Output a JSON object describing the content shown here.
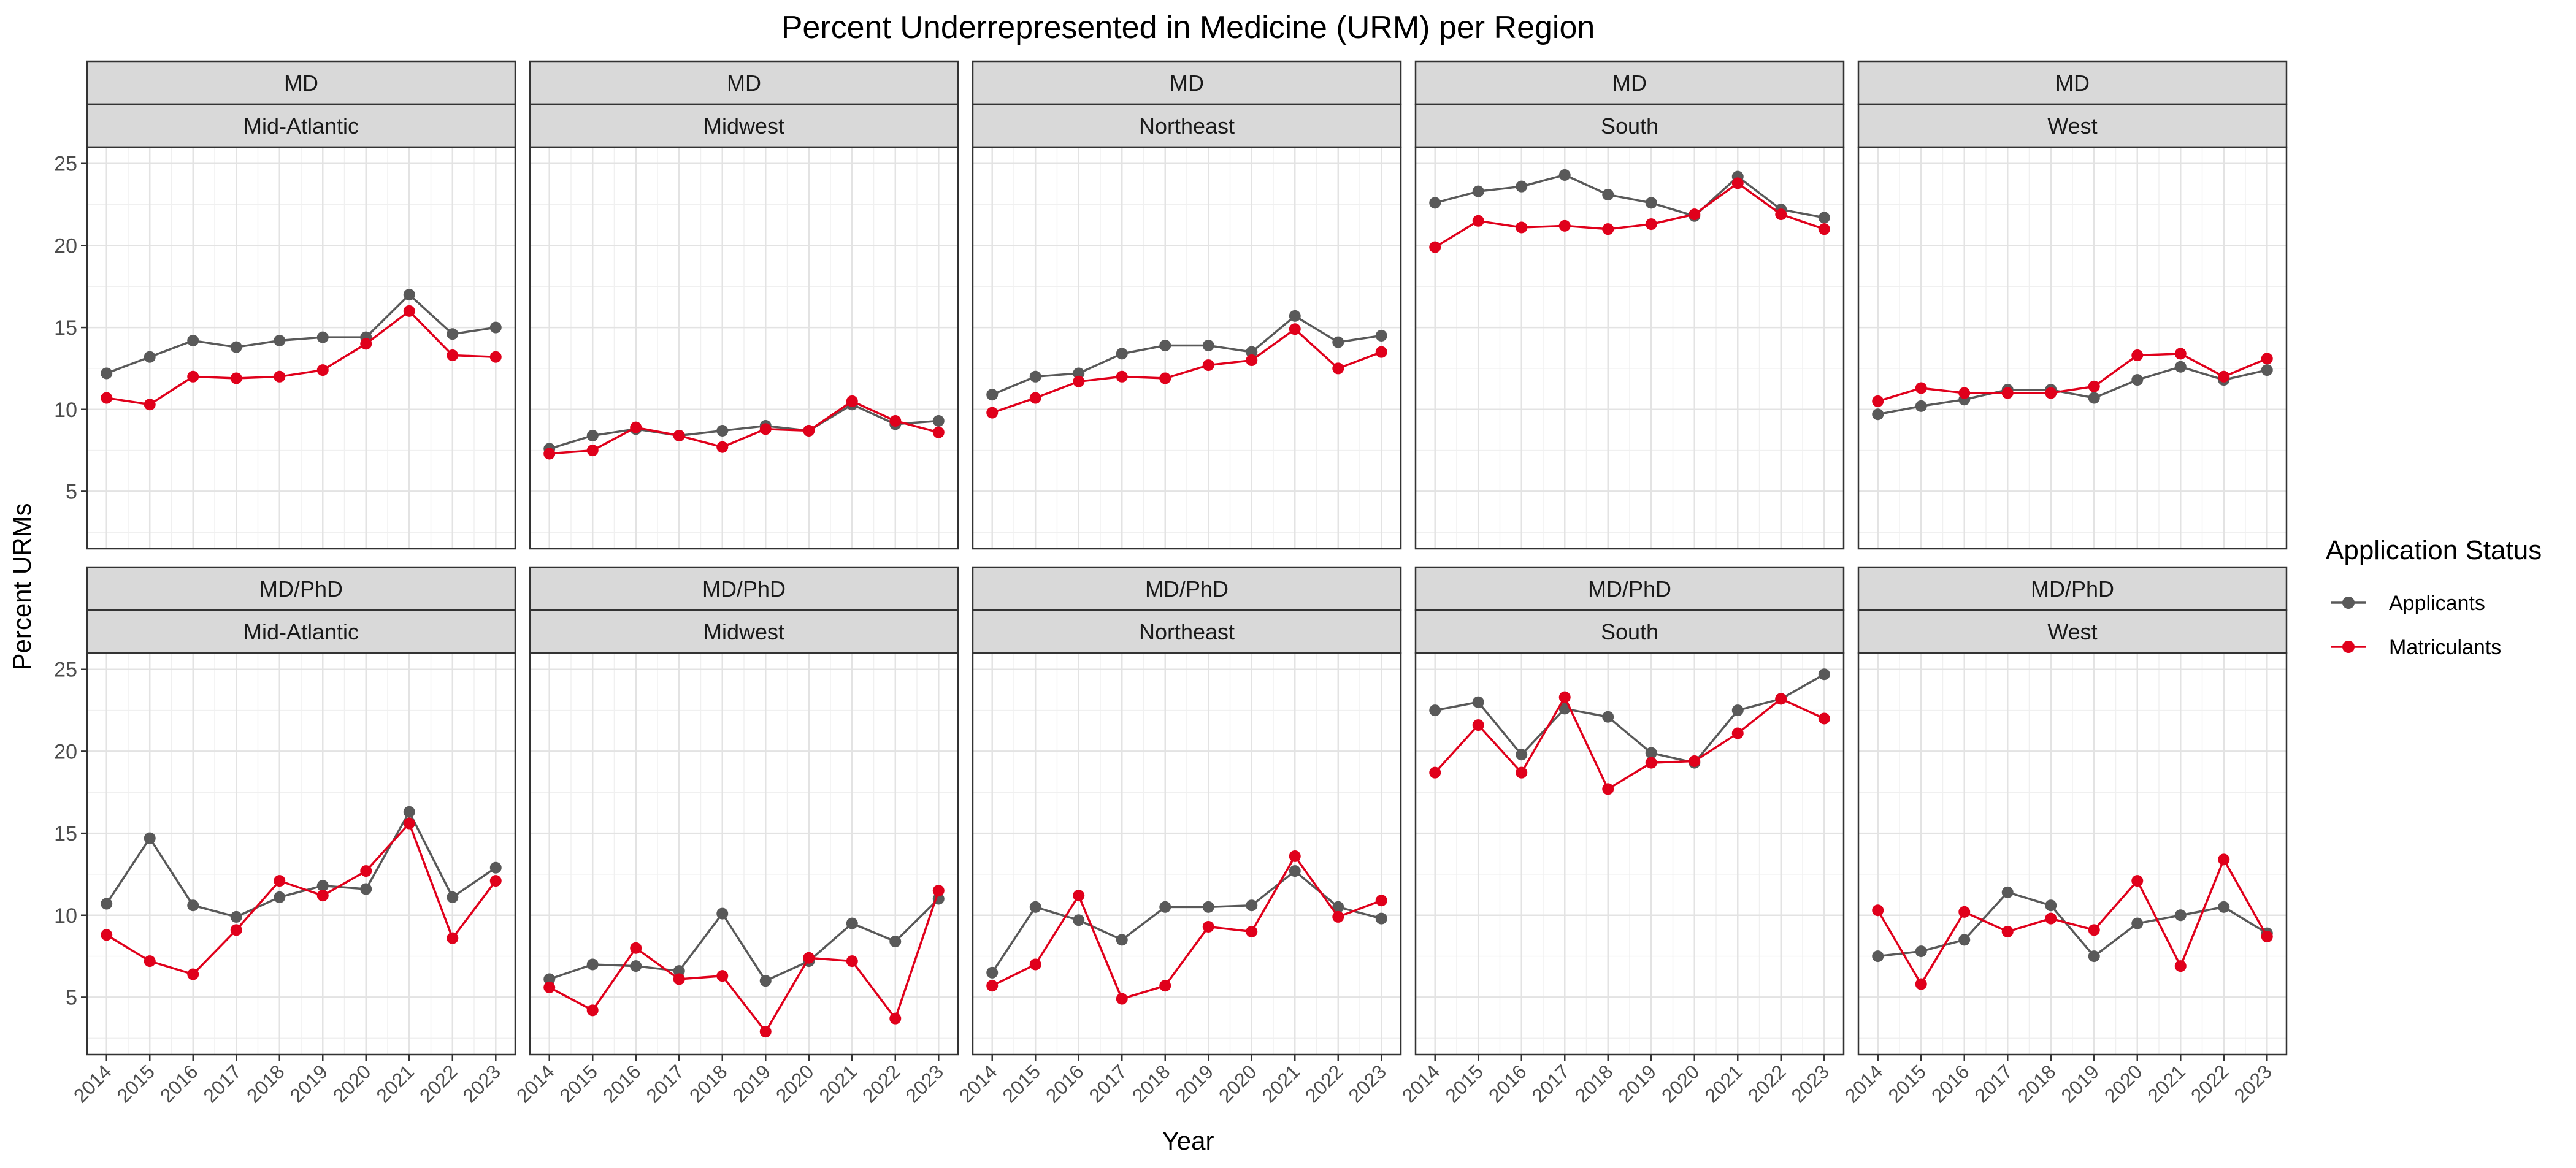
{
  "chart_data": {
    "type": "line",
    "title": "Percent Underrepresented in Medicine (URM) per Region",
    "xlabel": "Year",
    "ylabel": "Percent URMs",
    "x": [
      2014,
      2015,
      2016,
      2017,
      2018,
      2019,
      2020,
      2021,
      2022,
      2023
    ],
    "ylim": [
      1.5,
      26
    ],
    "yticks": [
      5,
      10,
      15,
      20,
      25
    ],
    "grid": true,
    "legend": {
      "title": "Application Status",
      "placement": "right",
      "entries": [
        {
          "name": "Applicants",
          "color": "#595959"
        },
        {
          "name": "Matriculants",
          "color": "#e0001b"
        }
      ]
    },
    "facets": [
      {
        "program": "MD",
        "region": "Mid-Atlantic",
        "series": [
          {
            "name": "Applicants",
            "values": [
              12.2,
              13.2,
              14.2,
              13.8,
              14.2,
              14.4,
              14.4,
              17.0,
              14.6,
              15.0
            ]
          },
          {
            "name": "Matriculants",
            "values": [
              10.7,
              10.3,
              12.0,
              11.9,
              12.0,
              12.4,
              14.0,
              16.0,
              13.3,
              13.2
            ]
          }
        ]
      },
      {
        "program": "MD",
        "region": "Midwest",
        "series": [
          {
            "name": "Applicants",
            "values": [
              7.6,
              8.4,
              8.8,
              8.4,
              8.7,
              9.0,
              8.7,
              10.3,
              9.1,
              9.3
            ]
          },
          {
            "name": "Matriculants",
            "values": [
              7.3,
              7.5,
              8.9,
              8.4,
              7.7,
              8.8,
              8.7,
              10.5,
              9.3,
              8.6
            ]
          }
        ]
      },
      {
        "program": "MD",
        "region": "Northeast",
        "series": [
          {
            "name": "Applicants",
            "values": [
              10.9,
              12.0,
              12.2,
              13.4,
              13.9,
              13.9,
              13.5,
              15.7,
              14.1,
              14.5
            ]
          },
          {
            "name": "Matriculants",
            "values": [
              9.8,
              10.7,
              11.7,
              12.0,
              11.9,
              12.7,
              13.0,
              14.9,
              12.5,
              13.5
            ]
          }
        ]
      },
      {
        "program": "MD",
        "region": "South",
        "series": [
          {
            "name": "Applicants",
            "values": [
              22.6,
              23.3,
              23.6,
              24.3,
              23.1,
              22.6,
              21.8,
              24.2,
              22.2,
              21.7
            ]
          },
          {
            "name": "Matriculants",
            "values": [
              19.9,
              21.5,
              21.1,
              21.2,
              21.0,
              21.3,
              21.9,
              23.8,
              21.9,
              21.0
            ]
          }
        ]
      },
      {
        "program": "MD",
        "region": "West",
        "series": [
          {
            "name": "Applicants",
            "values": [
              9.7,
              10.2,
              10.6,
              11.2,
              11.2,
              10.7,
              11.8,
              12.6,
              11.8,
              12.4
            ]
          },
          {
            "name": "Matriculants",
            "values": [
              10.5,
              11.3,
              11.0,
              11.0,
              11.0,
              11.4,
              13.3,
              13.4,
              12.0,
              13.1
            ]
          }
        ]
      },
      {
        "program": "MD/PhD",
        "region": "Mid-Atlantic",
        "series": [
          {
            "name": "Applicants",
            "values": [
              10.7,
              14.7,
              10.6,
              9.9,
              11.1,
              11.8,
              11.6,
              16.3,
              11.1,
              12.9
            ]
          },
          {
            "name": "Matriculants",
            "values": [
              8.8,
              7.2,
              6.4,
              9.1,
              12.1,
              11.2,
              12.7,
              15.6,
              8.6,
              12.1
            ]
          }
        ]
      },
      {
        "program": "MD/PhD",
        "region": "Midwest",
        "series": [
          {
            "name": "Applicants",
            "values": [
              6.1,
              7.0,
              6.9,
              6.6,
              10.1,
              6.0,
              7.2,
              9.5,
              8.4,
              11.0
            ]
          },
          {
            "name": "Matriculants",
            "values": [
              5.6,
              4.2,
              8.0,
              6.1,
              6.3,
              2.9,
              7.4,
              7.2,
              3.7,
              11.5
            ]
          }
        ]
      },
      {
        "program": "MD/PhD",
        "region": "Northeast",
        "series": [
          {
            "name": "Applicants",
            "values": [
              6.5,
              10.5,
              9.7,
              8.5,
              10.5,
              10.5,
              10.6,
              12.7,
              10.5,
              9.8
            ]
          },
          {
            "name": "Matriculants",
            "values": [
              5.7,
              7.0,
              11.2,
              4.9,
              5.7,
              9.3,
              9.0,
              13.6,
              9.9,
              10.9
            ]
          }
        ]
      },
      {
        "program": "MD/PhD",
        "region": "South",
        "series": [
          {
            "name": "Applicants",
            "values": [
              22.5,
              23.0,
              19.8,
              22.6,
              22.1,
              19.9,
              19.3,
              22.5,
              23.2,
              24.7
            ]
          },
          {
            "name": "Matriculants",
            "values": [
              18.7,
              21.6,
              18.7,
              23.3,
              17.7,
              19.3,
              19.4,
              21.1,
              23.2,
              22.0
            ]
          }
        ]
      },
      {
        "program": "MD/PhD",
        "region": "West",
        "series": [
          {
            "name": "Applicants",
            "values": [
              7.5,
              7.8,
              8.5,
              11.4,
              10.6,
              7.5,
              9.5,
              10.0,
              10.5,
              8.9
            ]
          },
          {
            "name": "Matriculants",
            "values": [
              10.3,
              5.8,
              10.2,
              9.0,
              9.8,
              9.1,
              12.1,
              6.9,
              13.4,
              8.7
            ]
          }
        ]
      }
    ]
  }
}
